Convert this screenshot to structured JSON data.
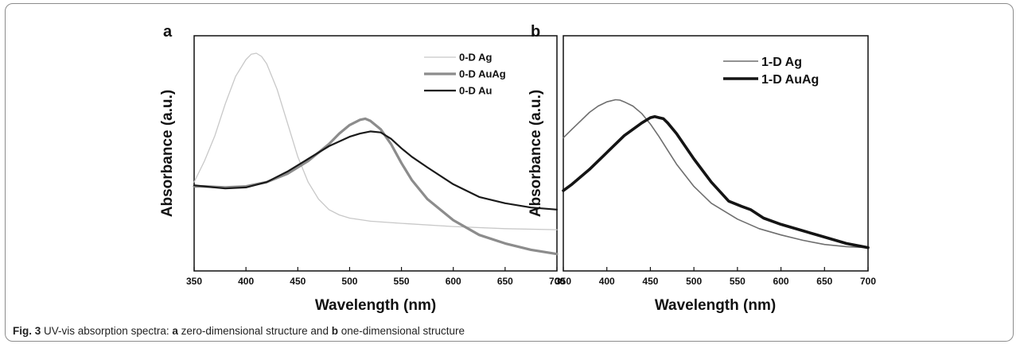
{
  "caption": {
    "fig_label": "Fig. 3",
    "text_1": " UV-vis absorption spectra: ",
    "letter_a": "a",
    "text_2": " zero-dimensional structure and ",
    "letter_b": "b",
    "text_3": " one-dimensional structure"
  },
  "chart_data": [
    {
      "panel": "a",
      "type": "line",
      "xlabel": "Wavelength (nm)",
      "ylabel": "Absorbance (a.u.)",
      "xlim": [
        350,
        700
      ],
      "ylim": [
        0,
        1
      ],
      "xticks": [
        "350",
        "400",
        "450",
        "500",
        "550",
        "600",
        "650",
        "700"
      ],
      "y_tick_labels": false,
      "grid": false,
      "legend": "top-right",
      "series": [
        {
          "name": "0-D Ag",
          "color": "#c8c8c8",
          "x": [
            350,
            360,
            370,
            380,
            390,
            400,
            405,
            410,
            415,
            420,
            430,
            440,
            450,
            460,
            470,
            480,
            490,
            500,
            520,
            550,
            600,
            650,
            700
          ],
          "y": [
            0.36,
            0.46,
            0.58,
            0.73,
            0.86,
            0.94,
            0.965,
            0.97,
            0.955,
            0.92,
            0.8,
            0.64,
            0.48,
            0.36,
            0.28,
            0.23,
            0.205,
            0.19,
            0.175,
            0.165,
            0.15,
            0.14,
            0.135
          ]
        },
        {
          "name": "0-D AuAg",
          "color": "#8c8c8c",
          "x": [
            350,
            360,
            380,
            400,
            420,
            440,
            460,
            480,
            490,
            500,
            510,
            515,
            520,
            530,
            540,
            550,
            560,
            575,
            600,
            625,
            650,
            675,
            700
          ],
          "y": [
            0.34,
            0.34,
            0.335,
            0.34,
            0.36,
            0.4,
            0.46,
            0.54,
            0.59,
            0.63,
            0.655,
            0.66,
            0.65,
            0.61,
            0.54,
            0.45,
            0.37,
            0.28,
            0.18,
            0.11,
            0.07,
            0.04,
            0.02
          ]
        },
        {
          "name": "0-D Au",
          "color": "#1a1a1a",
          "x": [
            350,
            360,
            380,
            400,
            420,
            440,
            460,
            480,
            500,
            510,
            520,
            530,
            540,
            550,
            560,
            575,
            600,
            625,
            650,
            675,
            700
          ],
          "y": [
            0.345,
            0.34,
            0.33,
            0.335,
            0.36,
            0.41,
            0.47,
            0.53,
            0.575,
            0.59,
            0.6,
            0.595,
            0.565,
            0.52,
            0.48,
            0.43,
            0.35,
            0.29,
            0.26,
            0.24,
            0.23
          ]
        }
      ]
    },
    {
      "panel": "b",
      "type": "line",
      "xlabel": "Wavelength (nm)",
      "ylabel": "Absorbance (a.u.)",
      "xlim": [
        350,
        700
      ],
      "ylim": [
        0,
        1
      ],
      "xticks": [
        "350",
        "400",
        "450",
        "500",
        "550",
        "600",
        "650",
        "700"
      ],
      "y_tick_labels": false,
      "grid": false,
      "legend": "top-right",
      "series": [
        {
          "name": "1-D Ag",
          "color": "#6e6e6e",
          "x": [
            350,
            360,
            370,
            380,
            390,
            400,
            410,
            415,
            420,
            430,
            440,
            450,
            460,
            470,
            480,
            500,
            520,
            550,
            575,
            600,
            625,
            650,
            675,
            700
          ],
          "y": [
            0.57,
            0.61,
            0.65,
            0.69,
            0.72,
            0.74,
            0.75,
            0.748,
            0.74,
            0.72,
            0.685,
            0.635,
            0.575,
            0.51,
            0.445,
            0.34,
            0.26,
            0.185,
            0.14,
            0.11,
            0.085,
            0.065,
            0.055,
            0.05
          ]
        },
        {
          "name": "1-D AuAg",
          "color": "#141414",
          "x": [
            350,
            360,
            380,
            400,
            420,
            440,
            450,
            455,
            460,
            465,
            470,
            480,
            500,
            520,
            540,
            555,
            565,
            580,
            600,
            625,
            650,
            675,
            700
          ],
          "y": [
            0.32,
            0.35,
            0.42,
            0.5,
            0.58,
            0.64,
            0.665,
            0.67,
            0.665,
            0.66,
            0.64,
            0.59,
            0.47,
            0.36,
            0.27,
            0.245,
            0.23,
            0.19,
            0.16,
            0.13,
            0.1,
            0.07,
            0.05
          ]
        }
      ]
    }
  ]
}
